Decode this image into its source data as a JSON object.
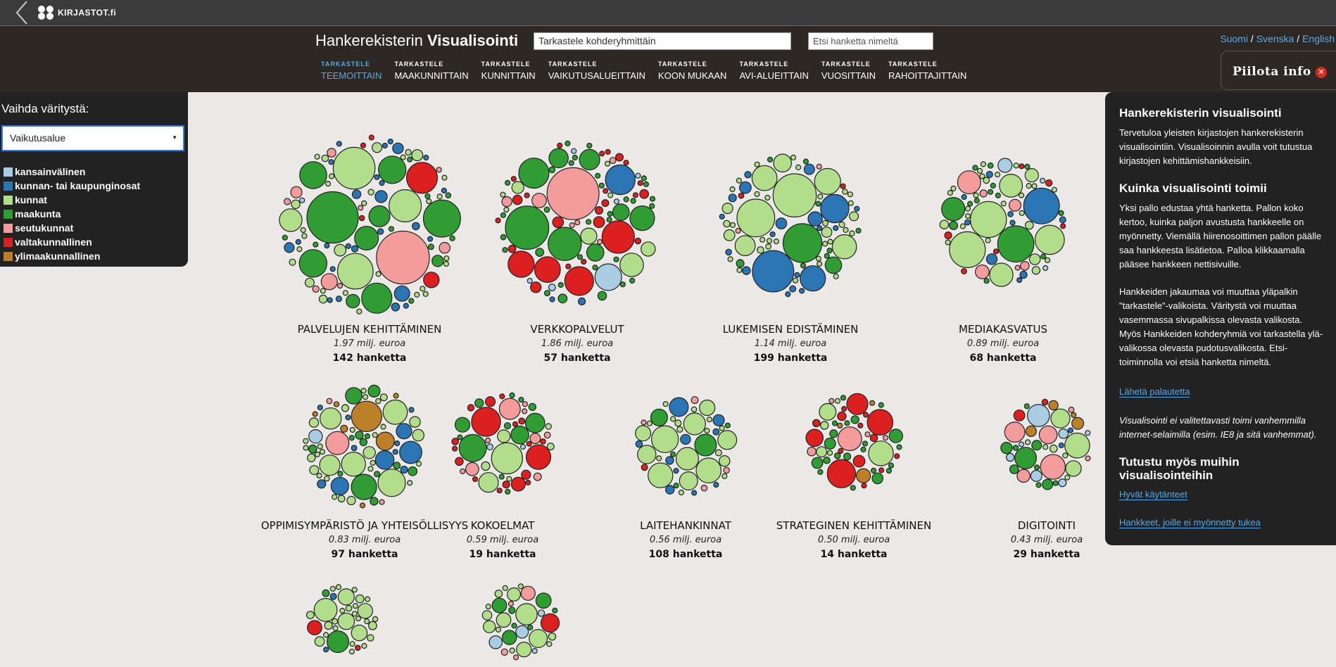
{
  "topbar": {
    "logo_text": "KIRJASTOT.fi"
  },
  "header": {
    "title_regular": "Hankerekisterin",
    "title_bold": "Visualisointi",
    "group_select_value": "Tarkastele kohderyhmittäin",
    "search_placeholder": "Etsi hanketta nimeltä",
    "languages": [
      "Suomi",
      "Svenska",
      "English"
    ],
    "lang_separator": "/"
  },
  "nav": {
    "tabs": [
      {
        "small": "TARKASTELE",
        "label": "TEEMOITTAIN",
        "active": true
      },
      {
        "small": "TARKASTELE",
        "label": "MAAKUNNITTAIN",
        "active": false
      },
      {
        "small": "TARKASTELE",
        "label": "KUNNITTAIN",
        "active": false
      },
      {
        "small": "TARKASTELE",
        "label": "VAIKUTUSALUEITTAIN",
        "active": false
      },
      {
        "small": "TARKASTELE",
        "label": "KOON MUKAAN",
        "active": false
      },
      {
        "small": "TARKASTELE",
        "label": "AVI-ALUEITTAIN",
        "active": false
      },
      {
        "small": "TARKASTELE",
        "label": "VUOSITTAIN",
        "active": false
      },
      {
        "small": "TARKASTELE",
        "label": "RAHOITTAJITTAIN",
        "active": false
      }
    ]
  },
  "hide_info": {
    "label": "Piilota info",
    "icon": "close-icon"
  },
  "left_panel": {
    "title": "Vaihda väritystä:",
    "select_value": "Vaikutusalue",
    "legend": [
      {
        "label": "kansainvälinen",
        "color": "#a9cde3"
      },
      {
        "label": "kunnan- tai kaupunginosat",
        "color": "#2b75b4"
      },
      {
        "label": "kunnat",
        "color": "#b2de8c"
      },
      {
        "label": "maakunta",
        "color": "#2f9c34"
      },
      {
        "label": "seutukunnat",
        "color": "#f49b9b"
      },
      {
        "label": "valtakunnallinen",
        "color": "#dc1f1f"
      },
      {
        "label": "ylimaakunnallinen",
        "color": "#bd7f2a"
      }
    ]
  },
  "right_panel": {
    "h1": "Hankerekisterin visualisointi",
    "p1": "Tervetuloa yleisten kirjastojen hankerekisterin visualisointiin. Visualisoinnin avulla voit tutustua kirjastojen kehittämishankkeisiin.",
    "h2": "Kuinka visualisointi toimii",
    "p2": "Yksi pallo edustaa yhtä hanketta. Pallon koko kertoo, kuinka paljon avustusta hankkeelle on myönnetty. Viemällä hiirenosoittimen pallon päälle saa hankkeesta lisätietoa. Palloa klikkaamalla pääsee hankkeen nettisivuille.",
    "p3": "Hankkeiden jakaumaa voi muuttaa yläpalkin \"tarkastele\"-valikoista. Väritystä voi muuttaa vasemmassa sivupalkissa olevasta valikosta. Myös Hankkeiden kohderyhmiä voi tarkastella ylä-valikossa olevasta pudotusvalikosta. Etsi-toiminnolla voi etsiä hanketta nimeltä.",
    "feedback_link": "Lähetä palautetta",
    "note": "Visualisointi ei valitettavasti toimi vanhemmilla internet-selaimilla (esim. IE8 ja sitä vanhemmat).",
    "h3": "Tutustu myös muihin visualisointeihin",
    "link1": "Hyvät käytänteet",
    "link2": "Hankkeet, joille ei myönnetty tukea"
  },
  "chart_data": {
    "type": "bubble-clusters",
    "color_by": "Vaikutusalue",
    "clusters": [
      {
        "name": "PALVELUJEN KEHITTÄMINEN",
        "sum": "1.97 milj. euroa",
        "count": "142 hanketta",
        "composition": {
          "kunnat": 0.38,
          "kunnan- tai kaupunginosat": 0.25,
          "maakunta": 0.22,
          "kansainvälinen": 0.05,
          "seutukunnat": 0.06,
          "valtakunnallinen": 0.04
        }
      },
      {
        "name": "VERKKOPALVELUT",
        "sum": "1.86 milj. euroa",
        "count": "57 hanketta",
        "composition": {
          "valtakunnallinen": 0.35,
          "maakunta": 0.3,
          "kunnat": 0.12,
          "seutukunnat": 0.1,
          "kansainvälinen": 0.06,
          "kunnan- tai kaupunginosat": 0.04,
          "ylimaakunnallinen": 0.03
        }
      },
      {
        "name": "LUKEMISEN EDISTÄMINEN",
        "sum": "1.14 milj. euroa",
        "count": "199 hanketta",
        "composition": {
          "kunnat": 0.48,
          "kunnan- tai kaupunginosat": 0.22,
          "maakunta": 0.18,
          "seutukunnat": 0.06,
          "valtakunnallinen": 0.04,
          "ylimaakunnallinen": 0.02
        }
      },
      {
        "name": "MEDIAKASVATUS",
        "sum": "0.89 milj. euroa",
        "count": "68 hanketta",
        "composition": {
          "kunnat": 0.45,
          "kunnan- tai kaupunginosat": 0.18,
          "maakunta": 0.15,
          "seutukunnat": 0.1,
          "valtakunnallinen": 0.08,
          "kansainvälinen": 0.04
        }
      },
      {
        "name": "OPPIMISYMPÄRISTÖ JA YHTEISÖLLISYYS",
        "sum": "0.83 milj. euroa",
        "count": "97 hanketta",
        "composition": {
          "kunnat": 0.42,
          "kunnan- tai kaupunginosat": 0.2,
          "maakunta": 0.16,
          "ylimaakunnallinen": 0.1,
          "seutukunnat": 0.07,
          "kansainvälinen": 0.05
        }
      },
      {
        "name": "KOKOELMAT",
        "sum": "0.59 milj. euroa",
        "count": "19 hanketta",
        "composition": {
          "valtakunnallinen": 0.45,
          "maakunta": 0.25,
          "kunnat": 0.12,
          "seutukunnat": 0.12,
          "kansainvälinen": 0.06
        }
      },
      {
        "name": "LAITEHANKINNAT",
        "sum": "0.56 milj. euroa",
        "count": "108 hanketta",
        "composition": {
          "kunnat": 0.5,
          "kunnan- tai kaupunginosat": 0.22,
          "maakunta": 0.18,
          "seutukunnat": 0.06,
          "valtakunnallinen": 0.04
        }
      },
      {
        "name": "STRATEGINEN KEHITTÄMINEN",
        "sum": "0.50 milj. euroa",
        "count": "14 hanketta",
        "composition": {
          "maakunta": 0.45,
          "valtakunnallinen": 0.3,
          "kunnat": 0.1,
          "seutukunnat": 0.08,
          "ylimaakunnallinen": 0.07
        }
      },
      {
        "name": "DIGITOINTI",
        "sum": "0.43 milj. euroa",
        "count": "29 hanketta",
        "composition": {
          "maakunta": 0.3,
          "kunnat": 0.25,
          "kansainvälinen": 0.18,
          "ylimaakunnallinen": 0.1,
          "kunnan- tai kaupunginosat": 0.07,
          "seutukunnat": 0.05,
          "valtakunnallinen": 0.05
        }
      },
      {
        "name": "",
        "sum": "",
        "count": "",
        "composition": {
          "kunnat": 0.65,
          "maakunta": 0.15,
          "valtakunnallinen": 0.08,
          "kunnan- tai kaupunginosat": 0.07,
          "ylimaakunnallinen": 0.05
        }
      },
      {
        "name": "",
        "sum": "",
        "count": "",
        "composition": {
          "maakunta": 0.35,
          "kunnat": 0.3,
          "seutukunnat": 0.15,
          "valtakunnallinen": 0.1,
          "kansainvälinen": 0.1
        }
      }
    ]
  }
}
